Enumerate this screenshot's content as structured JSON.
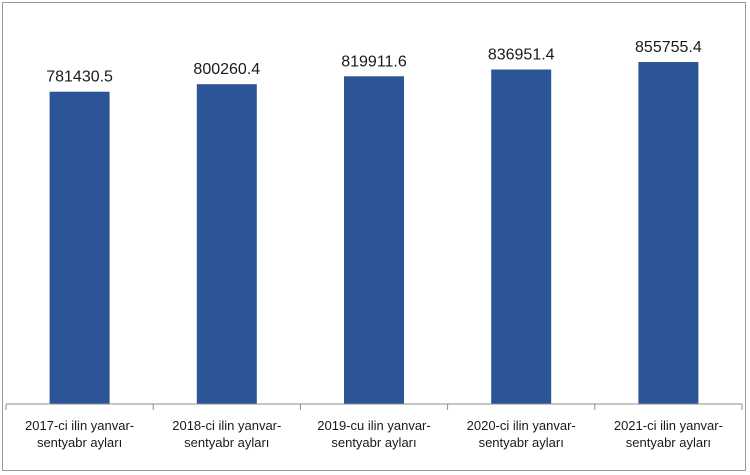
{
  "chart_data": {
    "type": "bar",
    "categories": [
      [
        "2017-ci ilin yanvar-",
        "sentyabr ayları"
      ],
      [
        "2018-ci ilin yanvar-",
        "sentyabr ayları"
      ],
      [
        "2019-cu ilin yanvar-",
        "sentyabr ayları"
      ],
      [
        "2020-ci ilin yanvar-",
        "sentyabr ayları"
      ],
      [
        "2021-ci ilin yanvar-",
        "sentyabr ayları"
      ]
    ],
    "values": [
      781430.5,
      800260.4,
      819911.6,
      836951.4,
      855755.4
    ],
    "value_labels": [
      "781430.5",
      "800260.4",
      "819911.6",
      "836951.4",
      "855755.4"
    ],
    "bar_color": "#2b5597",
    "ylim": [
      0,
      855755.4
    ],
    "grid": false,
    "legend": "none"
  }
}
